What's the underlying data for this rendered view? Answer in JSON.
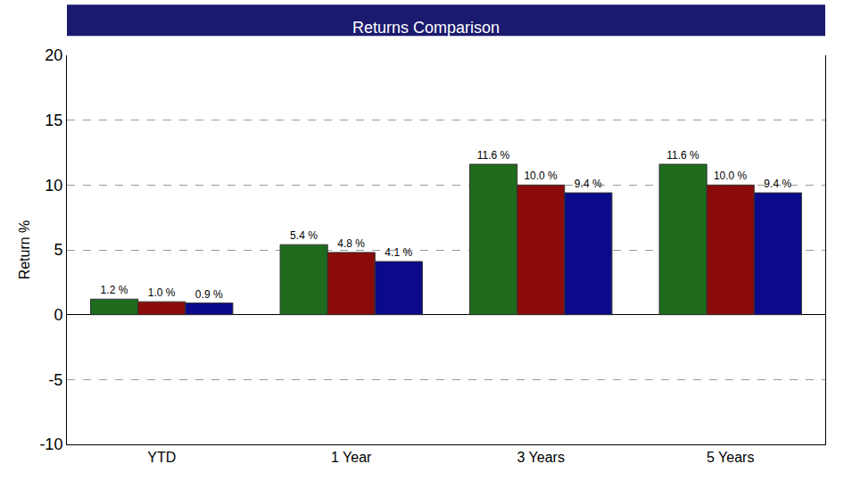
{
  "chart_data": {
    "type": "bar",
    "title": "Returns Comparison",
    "y_label": "Return %",
    "categories": [
      "YTD",
      "1 Year",
      "3 Years",
      "5 Years"
    ],
    "series": [
      {
        "color": "#1e6b1e",
        "values": [
          1.2,
          5.4,
          11.6,
          11.6
        ],
        "value_labels": [
          "1.2 %",
          "5.4 %",
          "11.6 %",
          "11.6 %"
        ]
      },
      {
        "color": "#8b0a0a",
        "values": [
          1.0,
          4.8,
          10.0,
          10.0
        ],
        "value_labels": [
          "1.0 %",
          "4.8 %",
          "10.0 %",
          "10.0 %"
        ]
      },
      {
        "color": "#0a0a8b",
        "values": [
          0.9,
          4.1,
          9.4,
          9.4
        ],
        "value_labels": [
          "0.9 %",
          "4.1 %",
          "9.4 %",
          "9.4 %"
        ]
      }
    ],
    "ylim": [
      -10,
      20
    ],
    "yticks": [
      -10,
      -5,
      0,
      5,
      10,
      15,
      20
    ],
    "grid": true,
    "data_labels": true
  }
}
